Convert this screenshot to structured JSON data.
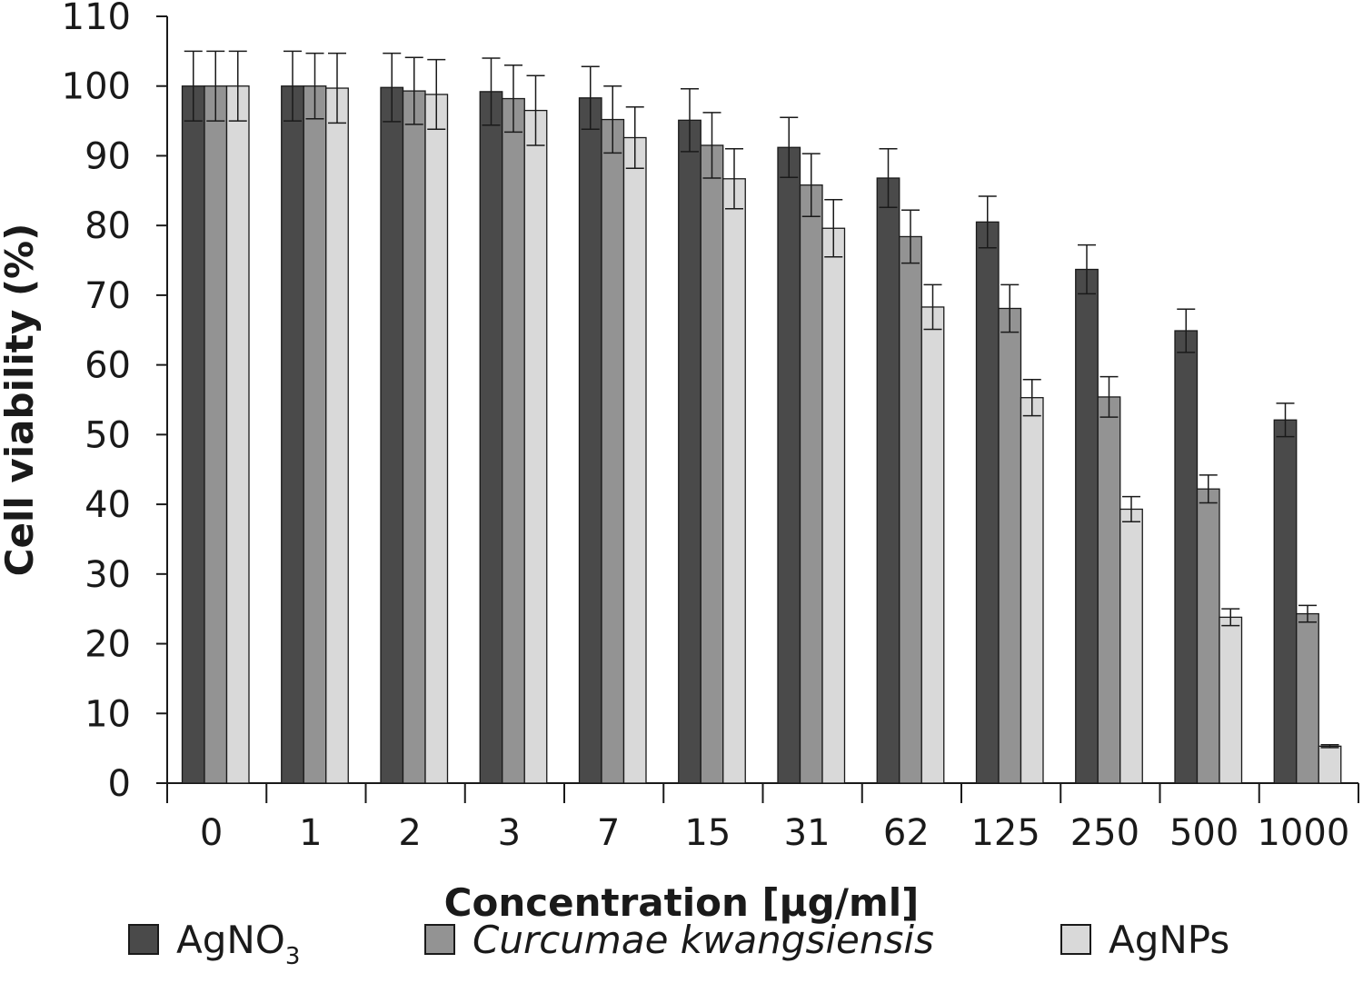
{
  "chart_data": {
    "type": "bar",
    "title": "",
    "xlabel": "Concentration [µg/ml]",
    "ylabel": "Cell viability (%)",
    "ylim": [
      0,
      110
    ],
    "yticks": [
      0,
      10,
      20,
      30,
      40,
      50,
      60,
      70,
      80,
      90,
      100,
      110
    ],
    "categories": [
      "0",
      "1",
      "2",
      "3",
      "7",
      "15",
      "31",
      "62",
      "125",
      "250",
      "500",
      "1000"
    ],
    "grid": false,
    "legend_position": "bottom",
    "series": [
      {
        "name": "AgNO",
        "name_subscript": "3",
        "italic": false,
        "color": "#4a4a4a",
        "values": [
          100,
          100,
          99.8,
          99.2,
          98.3,
          95.1,
          91.2,
          86.8,
          80.5,
          73.7,
          64.9,
          52.1
        ],
        "errors": [
          5.0,
          5.0,
          4.9,
          4.8,
          4.5,
          4.5,
          4.3,
          4.2,
          3.7,
          3.5,
          3.1,
          2.4
        ]
      },
      {
        "name": "Curcumae kwangsiensis",
        "name_subscript": "",
        "italic": true,
        "color": "#939393",
        "values": [
          100,
          100,
          99.3,
          98.2,
          95.2,
          91.5,
          85.8,
          78.4,
          68.1,
          55.4,
          42.2,
          24.3
        ],
        "errors": [
          5.0,
          4.7,
          4.8,
          4.8,
          4.8,
          4.7,
          4.5,
          3.8,
          3.4,
          2.9,
          2.0,
          1.2
        ]
      },
      {
        "name": "AgNPs",
        "name_subscript": "",
        "italic": false,
        "color": "#d9d9d9",
        "values": [
          100,
          99.7,
          98.8,
          96.5,
          92.6,
          86.7,
          79.6,
          68.3,
          55.3,
          39.3,
          23.8,
          5.3
        ],
        "errors": [
          5.0,
          5.0,
          5.0,
          5.0,
          4.4,
          4.3,
          4.1,
          3.2,
          2.6,
          1.8,
          1.2,
          0.2
        ]
      }
    ]
  }
}
